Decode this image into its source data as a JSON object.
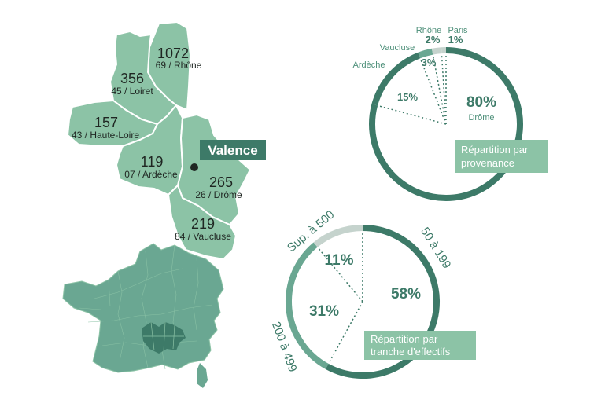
{
  "colors": {
    "dark": "#3d7a68",
    "medium": "#6aa792",
    "region": "#8cc3a6",
    "region_stroke": "#ffffff",
    "light_ring": "#c5d3cd",
    "label_green": "#4d8f79",
    "box_bg": "#8cc3a6",
    "valence_bg": "#3d7a68",
    "dark_text": "#2a2a2a"
  },
  "map": {
    "city_label": "Valence",
    "departments": [
      {
        "count": "1072",
        "name": "69 / Rhône"
      },
      {
        "count": "356",
        "name": "45 / Loiret"
      },
      {
        "count": "157",
        "name": "43 / Haute-Loire"
      },
      {
        "count": "119",
        "name": "07 / Ardèche"
      },
      {
        "count": "265",
        "name": "26 / Drôme"
      },
      {
        "count": "219",
        "name": "84 / Vaucluse"
      }
    ]
  },
  "chart_data": [
    {
      "type": "pie",
      "caption": [
        "Répartition par",
        "provenance"
      ],
      "labels": [
        "Drôme",
        "Ardèche",
        "Vaucluse",
        "Rhône",
        "Paris"
      ],
      "values": [
        80,
        15,
        3,
        2,
        1
      ],
      "value_labels": [
        "80%",
        "15%",
        "3%",
        "2%",
        "1%"
      ]
    },
    {
      "type": "pie",
      "caption": [
        "Répartition par",
        "tranche d'effectifs"
      ],
      "labels": [
        "50 à 199",
        "200 à 499",
        "Sup. à 500"
      ],
      "values": [
        58,
        31,
        11
      ],
      "value_labels": [
        "58%",
        "31%",
        "11%"
      ]
    }
  ]
}
